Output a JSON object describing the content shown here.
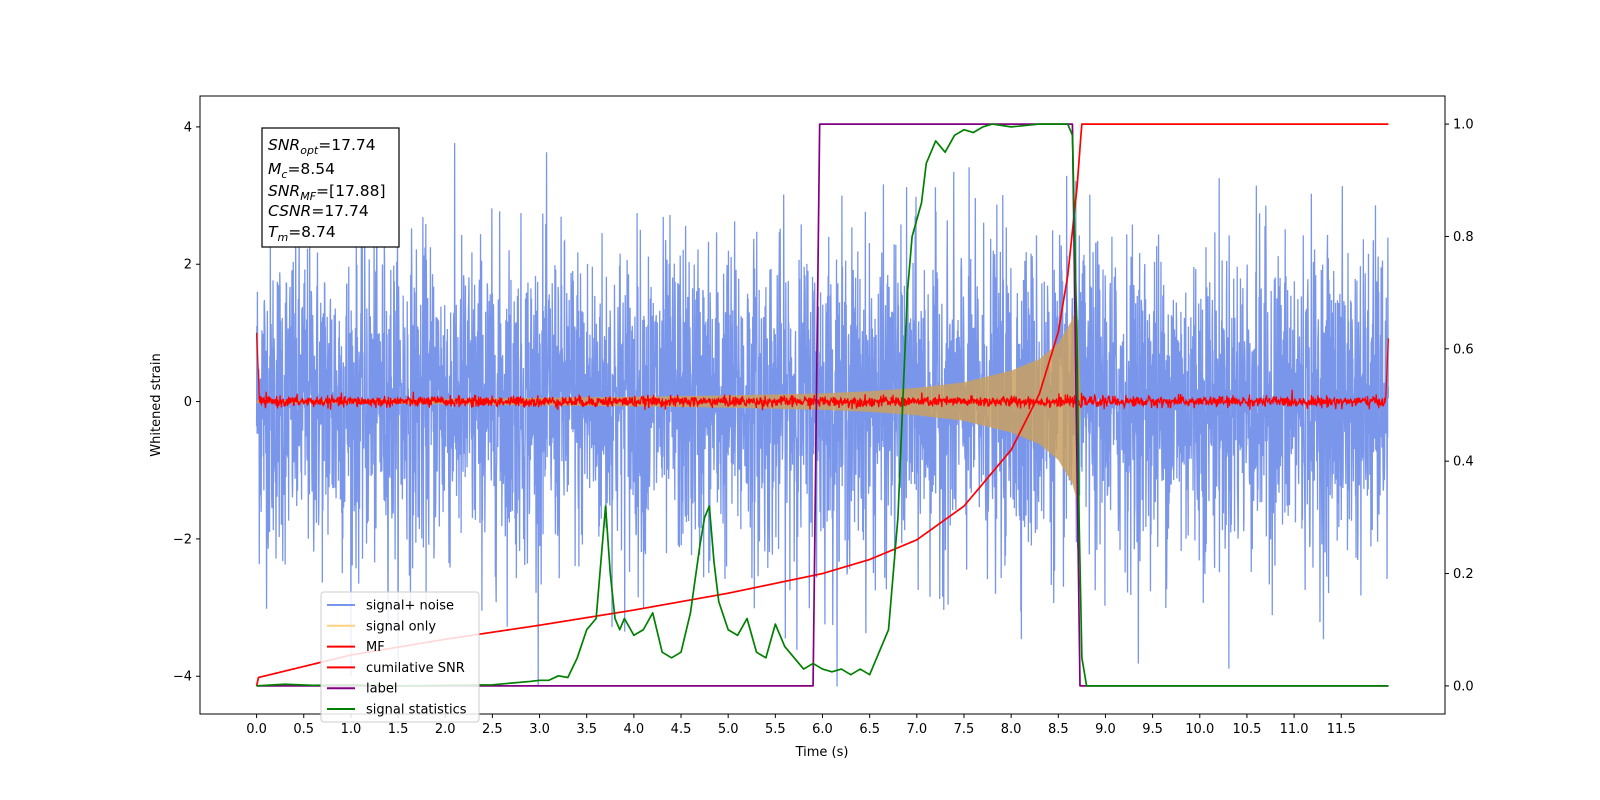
{
  "chart_data": {
    "type": "line",
    "xlabel": "Time (s)",
    "ylabel": "Whitened strain",
    "xlim": [
      -0.6,
      12.6
    ],
    "ylim": [
      -4.55,
      4.45
    ],
    "y2lim": [
      -0.05,
      1.05
    ],
    "xticks": [
      "0.0",
      "0.5",
      "1.0",
      "1.5",
      "2.0",
      "2.5",
      "3.0",
      "3.5",
      "4.0",
      "4.5",
      "5.0",
      "5.5",
      "6.0",
      "6.5",
      "7.0",
      "7.5",
      "8.0",
      "8.5",
      "9.0",
      "9.5",
      "10.0",
      "10.5",
      "11.0",
      "11.5"
    ],
    "yticks": [
      "−4",
      "−2",
      "0",
      "2",
      "4"
    ],
    "y2ticks": [
      "0.0",
      "0.2",
      "0.4",
      "0.6",
      "0.8",
      "1.0"
    ],
    "annotation": {
      "snr_opt": {
        "base": "SNR",
        "sub": "opt",
        "value": "=17.74"
      },
      "mc": {
        "base": "M",
        "sub": "c",
        "value": "=8.54"
      },
      "snr_mf": {
        "base": "SNR",
        "sub": "MF",
        "value": "=[17.88]"
      },
      "csnr": {
        "base": "CSNR",
        "sub": "",
        "value": "=17.74"
      },
      "tm": {
        "base": "T",
        "sub": "m",
        "value": "=8.74"
      }
    },
    "legend": {
      "location": "lower-left",
      "items": [
        {
          "label": "signal+ noise",
          "color": "#4169e1"
        },
        {
          "label": "signal only",
          "color": "#ffd27f"
        },
        {
          "label": "MF",
          "color": "#ff0000"
        },
        {
          "label": "cumilative SNR",
          "color": "#ff0000"
        },
        {
          "label": "label",
          "color": "#800080"
        },
        {
          "label": "signal statistics",
          "color": "#008000"
        }
      ]
    },
    "series": [
      {
        "name": "signal+ noise",
        "axis": "left",
        "color": "#4169e1",
        "alpha": 0.7,
        "x_range": [
          0,
          12
        ],
        "noise_std": 1.15,
        "peak_max": 4.05,
        "peak_min": -4.15
      },
      {
        "name": "signal only",
        "axis": "left",
        "color": "#ffd27f",
        "alpha": 0.55,
        "envelope": {
          "x": [
            0,
            2,
            4,
            5,
            6,
            6.5,
            7,
            7.5,
            8,
            8.3,
            8.5,
            8.65,
            8.7,
            8.74
          ],
          "y": [
            0.02,
            0.04,
            0.07,
            0.09,
            0.12,
            0.15,
            0.2,
            0.28,
            0.45,
            0.62,
            0.85,
            1.2,
            1.45,
            0.0
          ]
        }
      },
      {
        "name": "MF",
        "axis": "left",
        "color": "#ff0000",
        "x_range": [
          0,
          12
        ],
        "noise_std": 0.04,
        "edge": {
          "start": 1.0,
          "end": 0.92
        }
      },
      {
        "name": "cumilative SNR",
        "axis": "right",
        "color": "#ff0000",
        "points": {
          "x": [
            0,
            0.02,
            1,
            2,
            3,
            4,
            5,
            6,
            6.5,
            7,
            7.5,
            8,
            8.3,
            8.5,
            8.6,
            8.7,
            8.74,
            8.75,
            12
          ],
          "y": [
            0.0,
            0.015,
            0.055,
            0.083,
            0.108,
            0.135,
            0.165,
            0.2,
            0.225,
            0.26,
            0.32,
            0.42,
            0.52,
            0.63,
            0.73,
            0.89,
            0.98,
            1.0,
            1.0
          ]
        }
      },
      {
        "name": "label",
        "axis": "right",
        "color": "#800080",
        "points": {
          "x": [
            0,
            5.9,
            5.97,
            8.65,
            8.73,
            12
          ],
          "y": [
            0,
            0,
            1,
            1,
            0,
            0
          ]
        }
      },
      {
        "name": "signal statistics",
        "axis": "right",
        "color": "#008000",
        "points": {
          "x": [
            0,
            0.3,
            0.6,
            1.0,
            1.5,
            2.0,
            2.5,
            2.9,
            3.0,
            3.1,
            3.2,
            3.3,
            3.4,
            3.5,
            3.6,
            3.65,
            3.7,
            3.75,
            3.8,
            3.85,
            3.9,
            4.0,
            4.1,
            4.2,
            4.3,
            4.4,
            4.5,
            4.6,
            4.7,
            4.75,
            4.8,
            4.85,
            4.9,
            5.0,
            5.1,
            5.2,
            5.3,
            5.4,
            5.5,
            5.6,
            5.7,
            5.8,
            5.9,
            6.0,
            6.1,
            6.2,
            6.3,
            6.4,
            6.5,
            6.6,
            6.7,
            6.8,
            6.85,
            6.9,
            6.95,
            7.0,
            7.05,
            7.1,
            7.2,
            7.3,
            7.4,
            7.5,
            7.6,
            7.7,
            7.8,
            8.0,
            8.3,
            8.6,
            8.65,
            8.7,
            8.72,
            8.75,
            8.8,
            12.0
          ],
          "y": [
            0.0,
            0.003,
            0.001,
            0.002,
            0.0,
            0.001,
            0.002,
            0.008,
            0.01,
            0.01,
            0.018,
            0.015,
            0.05,
            0.1,
            0.12,
            0.22,
            0.32,
            0.2,
            0.12,
            0.1,
            0.12,
            0.09,
            0.1,
            0.13,
            0.06,
            0.05,
            0.06,
            0.13,
            0.25,
            0.3,
            0.32,
            0.22,
            0.15,
            0.1,
            0.09,
            0.12,
            0.06,
            0.05,
            0.11,
            0.07,
            0.05,
            0.03,
            0.04,
            0.03,
            0.025,
            0.03,
            0.02,
            0.03,
            0.02,
            0.06,
            0.1,
            0.3,
            0.5,
            0.7,
            0.8,
            0.83,
            0.86,
            0.93,
            0.97,
            0.95,
            0.98,
            0.99,
            0.985,
            0.995,
            1.0,
            0.995,
            1.0,
            1.0,
            0.98,
            0.6,
            0.3,
            0.05,
            0.0,
            0.0
          ]
        }
      }
    ]
  }
}
